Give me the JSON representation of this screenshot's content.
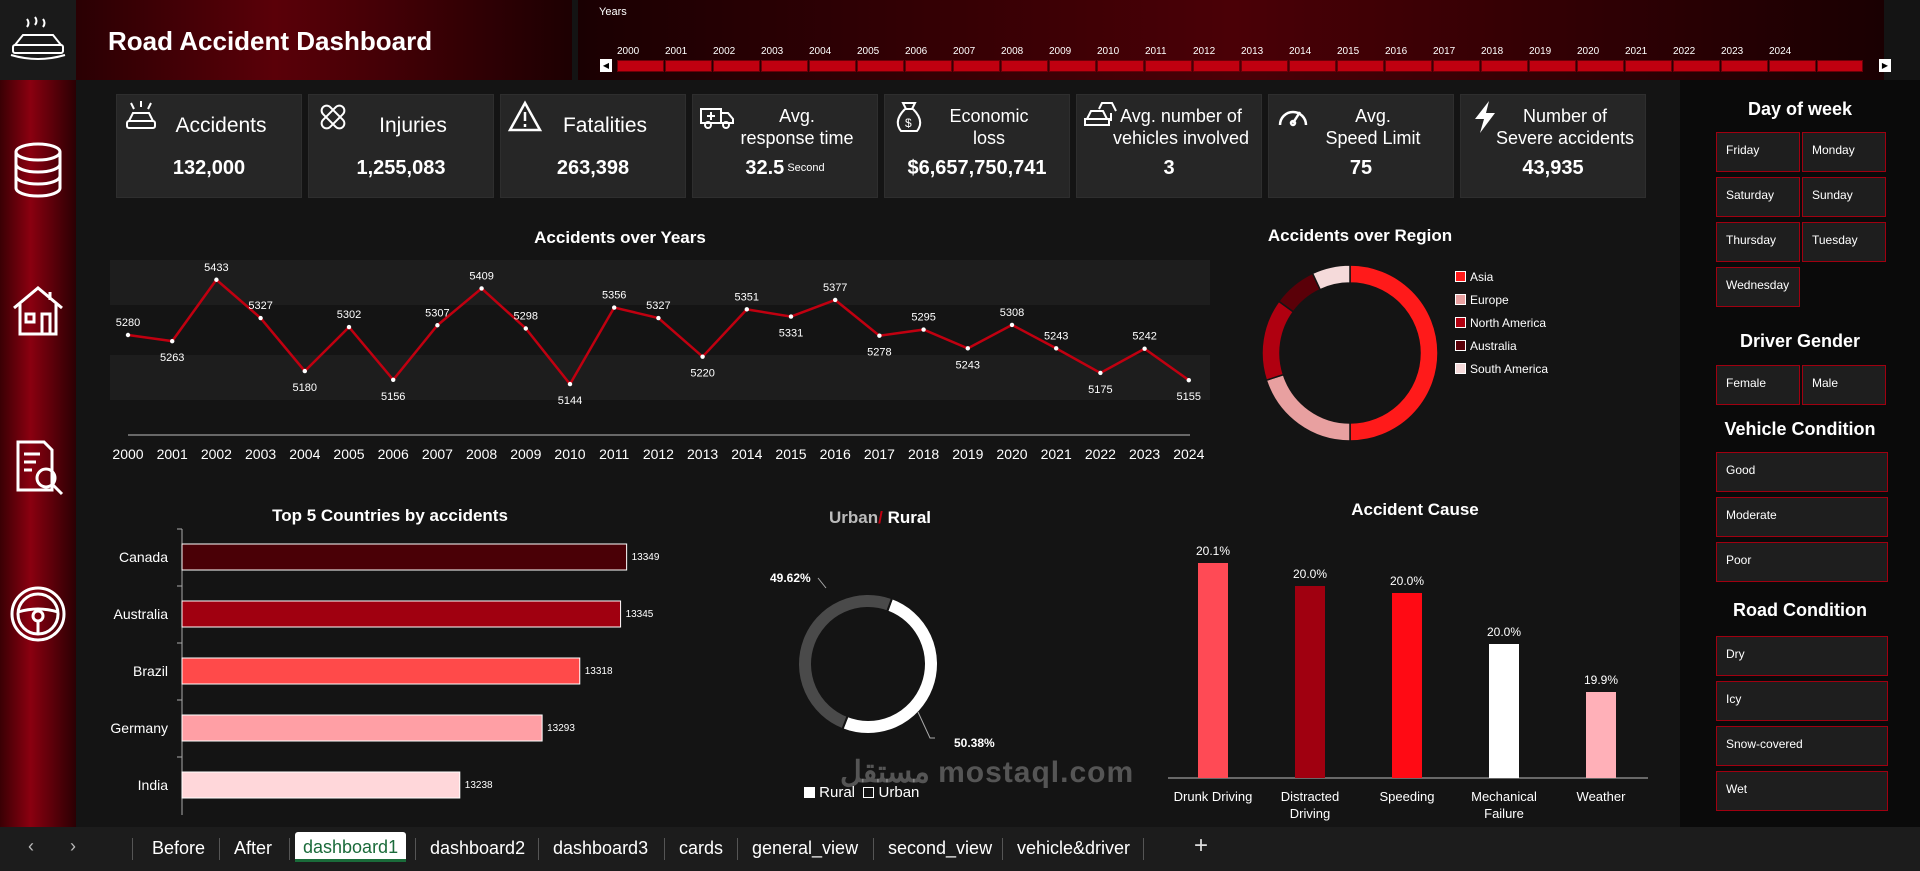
{
  "header": {
    "title": "Road Accident Dashboard",
    "years_label": "Years"
  },
  "timeline_years": [
    "2000",
    "2001",
    "2002",
    "2003",
    "2004",
    "2005",
    "2006",
    "2007",
    "2008",
    "2009",
    "2010",
    "2011",
    "2012",
    "2013",
    "2014",
    "2015",
    "2016",
    "2017",
    "2018",
    "2019",
    "2020",
    "2021",
    "2022",
    "2023",
    "2024"
  ],
  "kpis": [
    {
      "label": "Accidents",
      "value": "132,000",
      "icon": "car-crash-icon"
    },
    {
      "label": "Injuries",
      "value": "1,255,083",
      "icon": "bandage-icon"
    },
    {
      "label": "Fatalities",
      "value": "263,398",
      "icon": "warning-icon"
    },
    {
      "label": "Avg.\nresponse time",
      "value": "32.5",
      "unit": "Second",
      "icon": "ambulance-icon"
    },
    {
      "label": "Economic\nloss",
      "value": "$6,657,750,741",
      "icon": "money-bag-icon"
    },
    {
      "label": "Avg. number of\nvehicles involved",
      "value": "3",
      "icon": "multi-car-icon"
    },
    {
      "label": "Avg.\nSpeed Limit",
      "value": "75",
      "icon": "speedometer-icon"
    },
    {
      "label": "Number of\nSevere accidents",
      "value": "43,935",
      "icon": "lightning-icon"
    }
  ],
  "chart_data": [
    {
      "type": "line",
      "title": "Accidents over Years",
      "x": [
        "2000",
        "2001",
        "2002",
        "2003",
        "2004",
        "2005",
        "2006",
        "2007",
        "2008",
        "2009",
        "2010",
        "2011",
        "2012",
        "2013",
        "2014",
        "2015",
        "2016",
        "2017",
        "2018",
        "2019",
        "2020",
        "2021",
        "2022",
        "2023",
        "2024"
      ],
      "values": [
        5280,
        5263,
        5433,
        5327,
        5180,
        5302,
        5156,
        5307,
        5409,
        5298,
        5144,
        5356,
        5327,
        5220,
        5351,
        5331,
        5377,
        5278,
        5295,
        5243,
        5308,
        5243,
        5175,
        5242,
        5155
      ],
      "color": "#c00010"
    },
    {
      "type": "pie",
      "title": "Accidents over Region",
      "labels": [
        "Asia",
        "Europe",
        "North America",
        "Australia",
        "South America"
      ],
      "colors": [
        "#ff1a1a",
        "#e8a0a0",
        "#b00010",
        "#5a0008",
        "#f5dada"
      ],
      "values": [
        50,
        20,
        15,
        8,
        7
      ]
    },
    {
      "type": "bar",
      "title": "Top 5 Countries by accidents",
      "categories": [
        "Canada",
        "Australia",
        "Brazil",
        "Germany",
        "India"
      ],
      "values": [
        13349,
        13345,
        13318,
        13293,
        13238
      ],
      "colors": [
        "#4a0006",
        "#a00010",
        "#ff4a4a",
        "#ff9fa5",
        "#ffd7da"
      ]
    },
    {
      "type": "pie",
      "title_a": "Urban",
      "title_sep": "/",
      "title_b": "Rural",
      "labels": [
        "Rural",
        "Urban"
      ],
      "values": [
        50.38,
        49.62
      ],
      "value_labels": [
        "50.38%",
        "49.62%"
      ],
      "colors": [
        "#ffffff",
        "#4a4a4a"
      ]
    },
    {
      "type": "bar",
      "title": "Accident Cause",
      "categories": [
        "Drunk Driving",
        "Distracted\nDriving",
        "Speeding",
        "Mechanical\nFailure",
        "Weather"
      ],
      "values": [
        20.1,
        20.0,
        20.0,
        20.0,
        19.9
      ],
      "value_labels": [
        "20.1%",
        "20.0%",
        "20.0%",
        "20.0%",
        "19.9%"
      ],
      "colors": [
        "#ff4a55",
        "#a00010",
        "#ff0a14",
        "#ffffff",
        "#ffb0b8"
      ]
    }
  ],
  "slicers": {
    "day_of_week": {
      "title": "Day of week",
      "items": [
        "Friday",
        "Monday",
        "Saturday",
        "Sunday",
        "Thursday",
        "Tuesday",
        "Wednesday"
      ]
    },
    "driver_gender": {
      "title": "Driver Gender",
      "items": [
        "Female",
        "Male"
      ]
    },
    "vehicle_condition": {
      "title": "Vehicle Condition",
      "items": [
        "Good",
        "Moderate",
        "Poor"
      ]
    },
    "road_condition": {
      "title": "Road Condition",
      "items": [
        "Dry",
        "Icy",
        "Snow-covered",
        "Wet"
      ]
    }
  },
  "tabs": [
    "Before",
    "After",
    "dashboard1",
    "dashboard2",
    "dashboard3",
    "cards",
    "general_view",
    "second_view",
    "vehicle&driver"
  ],
  "active_tab": "dashboard1",
  "watermark": "مستقل mostaql.com"
}
